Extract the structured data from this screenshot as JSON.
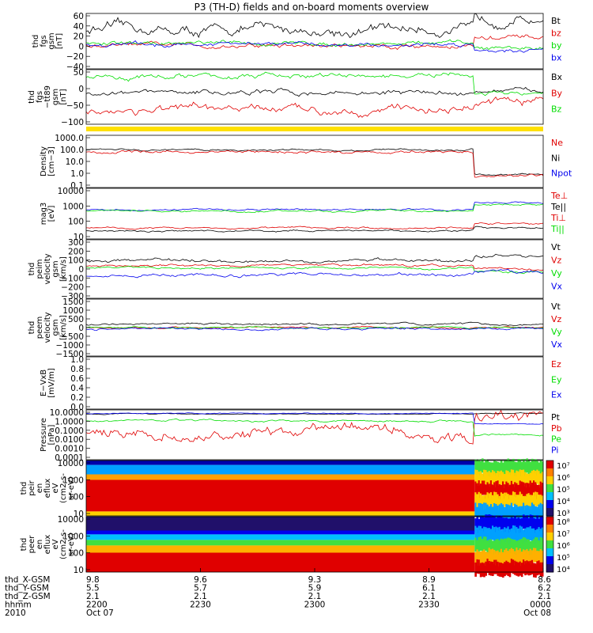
{
  "chart_data": {
    "type": "line",
    "title": "P3 (TH-D) fields and on-board moments overview",
    "panels": [
      {
        "ylabel": [
          "thd",
          "fgs",
          "gsm",
          "[nT]"
        ],
        "ticks": [
          "60",
          "40",
          "20",
          "0",
          "−20",
          "−40"
        ],
        "ylim": [
          -50,
          65
        ],
        "series": [
          {
            "name": "Bt",
            "color": "#000000"
          },
          {
            "name": "bz",
            "color": "#e00000"
          },
          {
            "name": "by",
            "color": "#00dd00"
          },
          {
            "name": "bx",
            "color": "#0000ee"
          }
        ]
      },
      {
        "ylabel": [
          "thd",
          "fgs",
          "−tt89",
          "gsm",
          "[nT]"
        ],
        "ticks": [
          "50",
          "0",
          "−50",
          "−100"
        ],
        "ylim": [
          -125,
          70
        ],
        "series": [
          {
            "name": "Bx",
            "color": "#000000"
          },
          {
            "name": "By",
            "color": "#e00000"
          },
          {
            "name": "Bz",
            "color": "#00dd00"
          }
        ]
      },
      {
        "ylabel": [
          "Density",
          "[cm−3]"
        ],
        "ticks": [
          "1000.0",
          "100.0",
          "10.0",
          "1.0",
          "0.1"
        ],
        "ylim": [
          0.05,
          3000
        ],
        "log": true,
        "series": [
          {
            "name": "Ne",
            "color": "#e00000"
          },
          {
            "name": "Ni",
            "color": "#000000"
          },
          {
            "name": "Npot",
            "color": "#0000ee"
          }
        ]
      },
      {
        "ylabel": [
          "mag3",
          "[eV]"
        ],
        "ticks": [
          "10000",
          "1000",
          "100",
          "10"
        ],
        "ylim": [
          5,
          12000
        ],
        "log": true,
        "series": [
          {
            "name": "Te⊥",
            "color": "#e00000"
          },
          {
            "name": "Te||",
            "color": "#000000"
          },
          {
            "name": "Ti⊥",
            "color": "#e00000"
          },
          {
            "name": "Ti||",
            "color": "#00dd00"
          }
        ]
      },
      {
        "ylabel": [
          "thd",
          "peim",
          "velocity",
          "gsm",
          "[km/s]"
        ],
        "ticks": [
          "300",
          "200",
          "100",
          "0",
          "−100",
          "−200",
          "−300"
        ],
        "ylim": [
          -300,
          300
        ],
        "series": [
          {
            "name": "Vt",
            "color": "#000000"
          },
          {
            "name": "Vz",
            "color": "#e00000"
          },
          {
            "name": "Vy",
            "color": "#00dd00"
          },
          {
            "name": "Vx",
            "color": "#0000ee"
          }
        ]
      },
      {
        "ylabel": [
          "thd",
          "peem",
          "velocity",
          "gsm",
          "[km/s]"
        ],
        "ticks": [
          "1500",
          "1000",
          "500",
          "0",
          "−500",
          "−1000",
          "−1500"
        ],
        "ylim": [
          -1500,
          1500
        ],
        "series": [
          {
            "name": "Vt",
            "color": "#000000"
          },
          {
            "name": "Vz",
            "color": "#e00000"
          },
          {
            "name": "Vy",
            "color": "#00dd00"
          },
          {
            "name": "Vx",
            "color": "#0000ee"
          }
        ]
      },
      {
        "ylabel": [
          "E−VxB",
          "[mV/m]"
        ],
        "ticks": [
          "1.0",
          "0.8",
          "0.6",
          "0.4",
          "0.2",
          "0.0"
        ],
        "ylim": [
          0,
          1
        ],
        "series": [
          {
            "name": "Ez",
            "color": "#e00000"
          },
          {
            "name": "Ey",
            "color": "#00dd00"
          },
          {
            "name": "Ex",
            "color": "#0000ee"
          }
        ]
      },
      {
        "ylabel": [
          "Pressure",
          "[nPa]"
        ],
        "ticks": [
          "10.0000",
          "1.0000",
          "0.1000",
          "0.0100",
          "0.0010",
          "0.0001"
        ],
        "ylim": [
          0.0001,
          10
        ],
        "log": true,
        "series": [
          {
            "name": "Pt",
            "color": "#000000"
          },
          {
            "name": "Pb",
            "color": "#e00000"
          },
          {
            "name": "Pe",
            "color": "#00dd00"
          },
          {
            "name": "Pi",
            "color": "#0000ee"
          }
        ]
      },
      {
        "ylabel": [
          "thd",
          "peir",
          "en",
          "eflux",
          "eV",
          "(cm2-s-",
          "sr-eV)"
        ],
        "ticks": [
          "10000",
          "1000",
          "100",
          "10"
        ],
        "ylim": [
          7,
          14000
        ],
        "log": true,
        "colorbar": [
          "10⁷",
          "10⁶",
          "10⁵",
          "10⁴",
          "10³"
        ]
      },
      {
        "ylabel": [
          "thd",
          "peer",
          "en",
          "eflux",
          "eV",
          "(cm2-s-",
          "sr-eV)"
        ],
        "ticks": [
          "10000",
          "1000",
          "100",
          "10"
        ],
        "ylim": [
          7,
          14000
        ],
        "log": true,
        "colorbar": [
          "10⁸",
          "10⁷",
          "10⁶",
          "10⁵",
          "10⁴"
        ]
      }
    ],
    "xaxis": {
      "row_labels": [
        "thd_X-GSM",
        "thd_Y-GSM",
        "thd_Z-GSM",
        "hhmm",
        "2010"
      ],
      "columns": [
        {
          "values": [
            "9.8",
            "5.5",
            "2.1",
            "2200",
            "Oct 07"
          ]
        },
        {
          "values": [
            "9.6",
            "5.7",
            "2.1",
            "2230",
            ""
          ]
        },
        {
          "values": [
            "9.3",
            "5.9",
            "2.1",
            "2300",
            ""
          ]
        },
        {
          "values": [
            "8.9",
            "6.1",
            "2.1",
            "2330",
            ""
          ]
        },
        {
          "values": [
            "8.6",
            "6.2",
            "2.1",
            "0000",
            "Oct 08"
          ]
        }
      ]
    }
  }
}
